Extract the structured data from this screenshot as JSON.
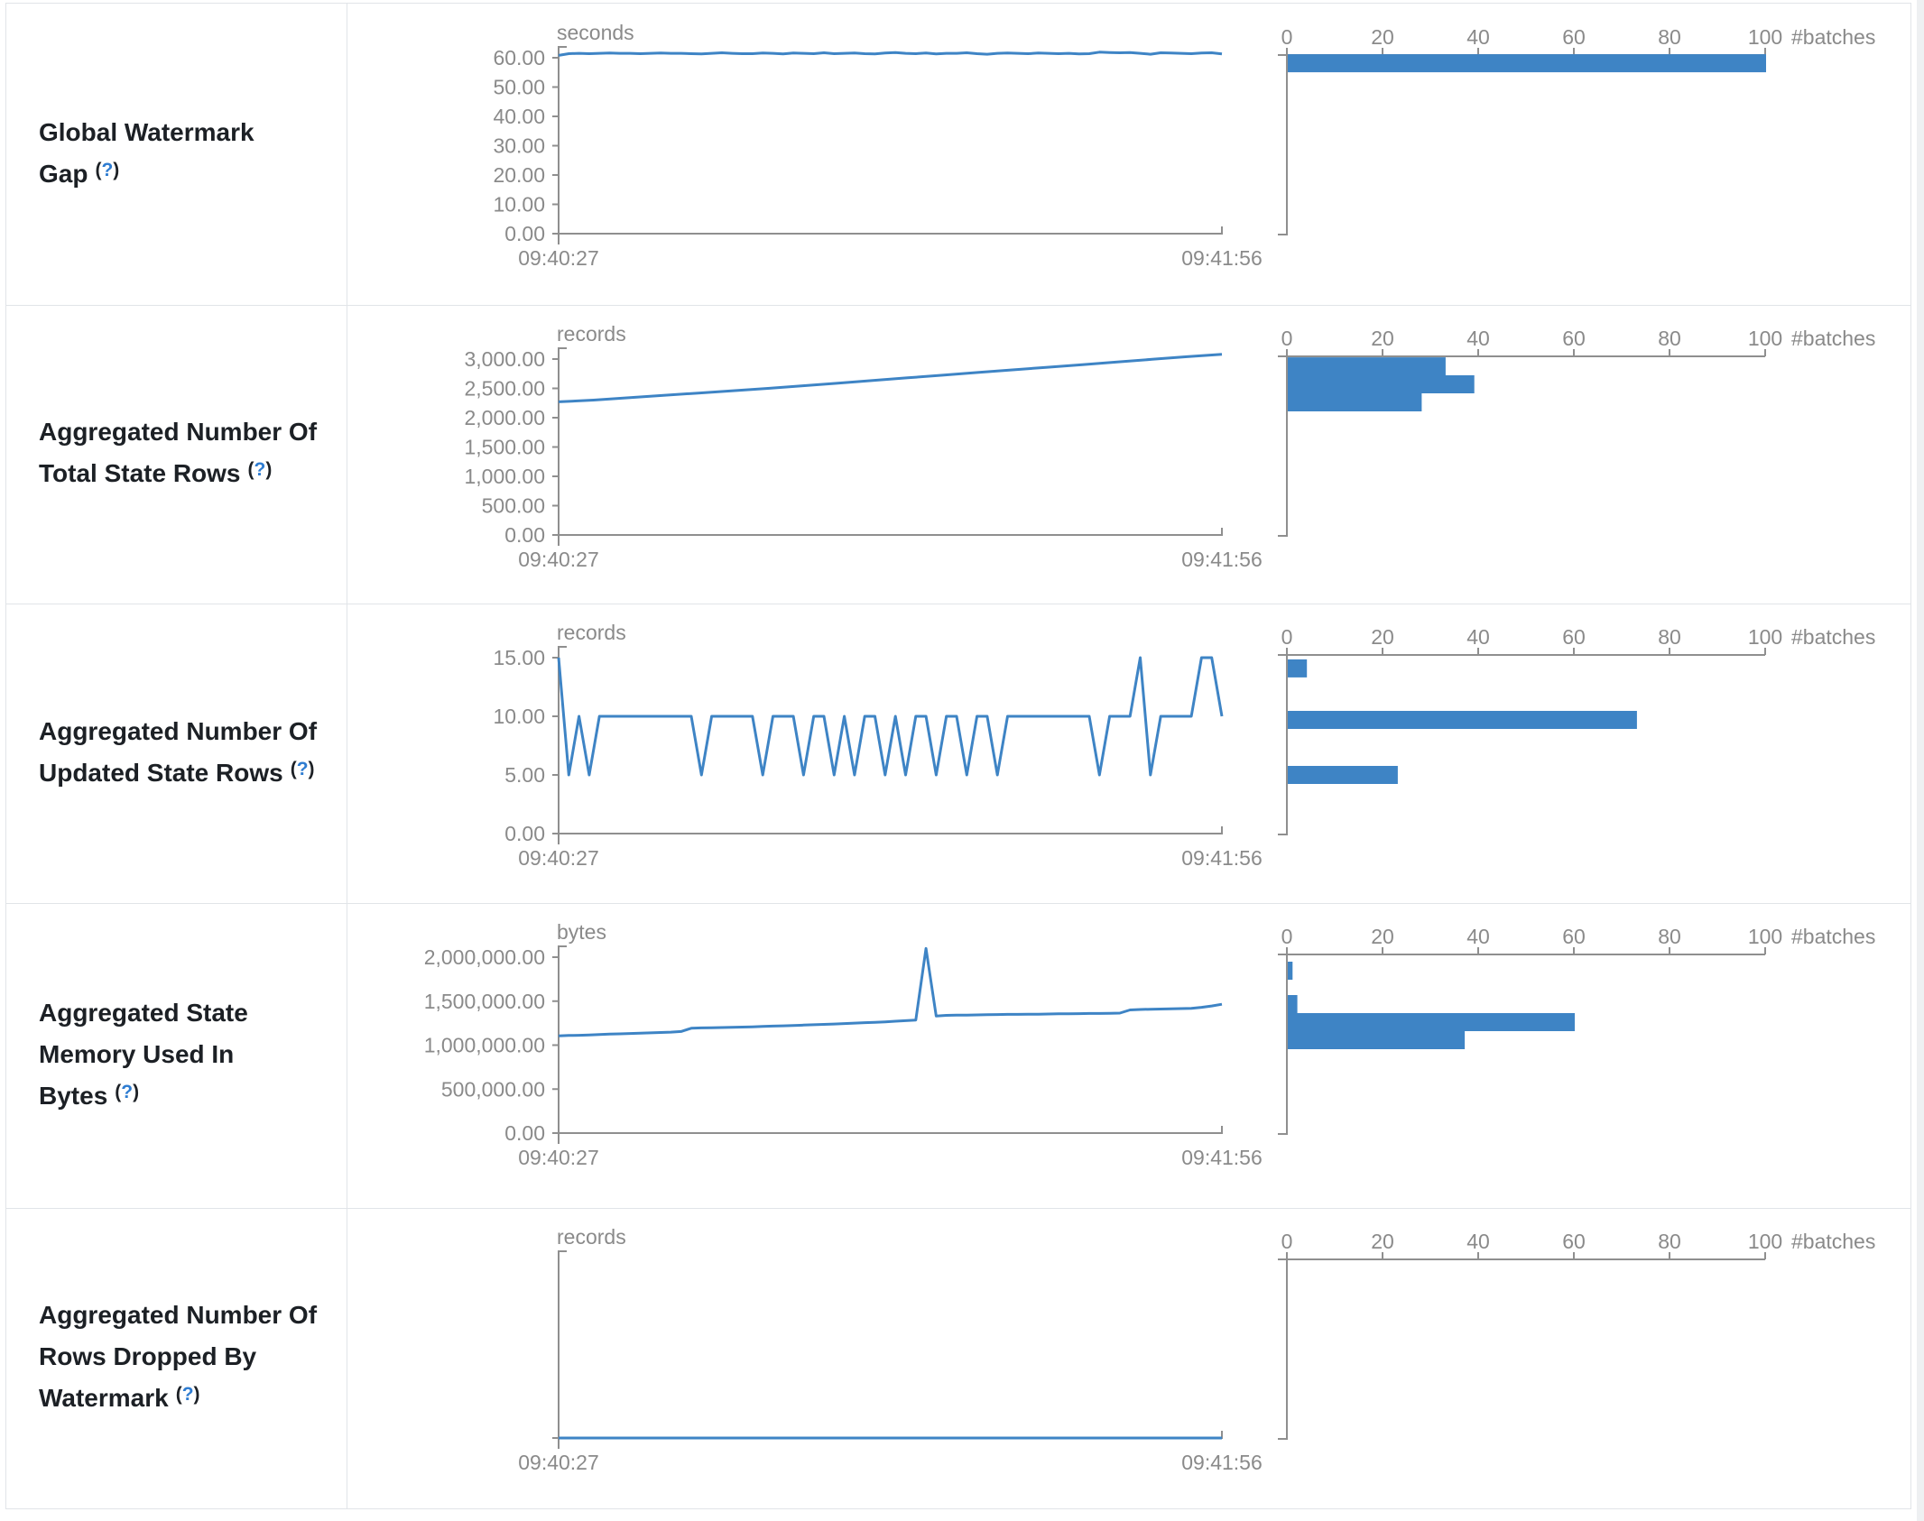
{
  "colors": {
    "accent": "#3e84c5",
    "axis_line": "#8f8f8f",
    "chart_text": "#8a8a8a",
    "label_text": "#1c2025",
    "help_blue": "#2e7cd1",
    "table_border": "#e1e4e8"
  },
  "time_axis": {
    "start": "09:40:27",
    "end": "09:41:56"
  },
  "batch_axis": {
    "ticks": [
      "0",
      "20",
      "40",
      "60",
      "80",
      "100"
    ],
    "tick_values": [
      0,
      20,
      40,
      60,
      80,
      100
    ],
    "label": "#batches"
  },
  "rows": [
    {
      "label": "Global Watermark Gap",
      "help": {
        "open": "(",
        "q": "?",
        "close": ")"
      },
      "unit": "seconds",
      "ymax": 60,
      "y_ticks": [
        {
          "v": 60,
          "label": "60.00"
        },
        {
          "v": 50,
          "label": "50.00"
        },
        {
          "v": 40,
          "label": "40.00"
        },
        {
          "v": 30,
          "label": "30.00"
        },
        {
          "v": 20,
          "label": "20.00"
        },
        {
          "v": 10,
          "label": "10.00"
        },
        {
          "v": 0,
          "label": "0.00"
        }
      ],
      "series": [
        60.8,
        61.4,
        61.5,
        61.4,
        61.5,
        61.6,
        61.5,
        61.5,
        61.4,
        61.5,
        61.6,
        61.5,
        61.5,
        61.4,
        61.3,
        61.5,
        61.7,
        61.5,
        61.4,
        61.4,
        61.6,
        61.5,
        61.3,
        61.6,
        61.5,
        61.4,
        61.7,
        61.4,
        61.5,
        61.6,
        61.4,
        61.3,
        61.6,
        61.8,
        61.5,
        61.4,
        61.6,
        61.3,
        61.5,
        61.5,
        61.7,
        61.4,
        61.2,
        61.5,
        61.6,
        61.5,
        61.4,
        61.6,
        61.5,
        61.4,
        61.5,
        61.3,
        61.4,
        61.9,
        61.8,
        61.7,
        61.8,
        61.5,
        61.2,
        61.7,
        61.6,
        61.5,
        61.4,
        61.6,
        61.7,
        61.3
      ],
      "hist_bars": [
        {
          "v": 61.2,
          "count": 100
        }
      ]
    },
    {
      "label": "Aggregated Number Of Total State Rows",
      "help": {
        "open": "(",
        "q": "?",
        "close": ")"
      },
      "unit": "records",
      "ymax": 3000,
      "y_ticks": [
        {
          "v": 3000,
          "label": "3,000.00"
        },
        {
          "v": 2500,
          "label": "2,500.00"
        },
        {
          "v": 2000,
          "label": "2,000.00"
        },
        {
          "v": 1500,
          "label": "1,500.00"
        },
        {
          "v": 1000,
          "label": "1,000.00"
        },
        {
          "v": 500,
          "label": "500.00"
        },
        {
          "v": 0,
          "label": "0.00"
        }
      ],
      "series": [
        2270,
        2300,
        2340,
        2380,
        2420,
        2460,
        2500,
        2545,
        2590,
        2635,
        2680,
        2725,
        2770,
        2815,
        2860,
        2905,
        2950,
        2995,
        3040,
        3080
      ],
      "hist_bars": [
        {
          "v": 3030,
          "count": 33
        },
        {
          "v": 2723,
          "count": 39
        },
        {
          "v": 2416,
          "count": 28
        }
      ]
    },
    {
      "label": "Aggregated Number Of Updated State Rows",
      "help": {
        "open": "(",
        "q": "?",
        "close": ")"
      },
      "unit": "records",
      "ymax": 15,
      "y_ticks": [
        {
          "v": 15,
          "label": "15.00"
        },
        {
          "v": 10,
          "label": "10.00"
        },
        {
          "v": 5,
          "label": "5.00"
        },
        {
          "v": 0,
          "label": "0.00"
        }
      ],
      "series": [
        15,
        5,
        10,
        5,
        10,
        10,
        10,
        10,
        10,
        10,
        10,
        10,
        10,
        10,
        5,
        10,
        10,
        10,
        10,
        10,
        5,
        10,
        10,
        10,
        5,
        10,
        10,
        5,
        10,
        5,
        10,
        10,
        5,
        10,
        5,
        10,
        10,
        5,
        10,
        10,
        5,
        10,
        10,
        5,
        10,
        10,
        10,
        10,
        10,
        10,
        10,
        10,
        10,
        5,
        10,
        10,
        10,
        15,
        5,
        10,
        10,
        10,
        10,
        15,
        15,
        10
      ],
      "hist_bars": [
        {
          "v": 14.85,
          "count": 4
        },
        {
          "v": 10.46,
          "count": 73
        },
        {
          "v": 5.77,
          "count": 23
        }
      ]
    },
    {
      "label": "Aggregated State Memory Used In Bytes",
      "help": {
        "open": "(",
        "q": "?",
        "close": ")"
      },
      "unit": "bytes",
      "ymax": 2000000,
      "y_ticks": [
        {
          "v": 2000000,
          "label": "2,000,000.00"
        },
        {
          "v": 1500000,
          "label": "1,500,000.00"
        },
        {
          "v": 1000000,
          "label": "1,000,000.00"
        },
        {
          "v": 500000,
          "label": "500,000.00"
        },
        {
          "v": 0,
          "label": "0.00"
        }
      ],
      "series": [
        1105000,
        1110000,
        1112000,
        1115000,
        1120000,
        1125000,
        1128000,
        1132000,
        1136000,
        1140000,
        1144000,
        1148000,
        1155000,
        1192000,
        1196000,
        1198000,
        1200000,
        1202000,
        1205000,
        1208000,
        1212000,
        1216000,
        1220000,
        1224000,
        1228000,
        1232000,
        1236000,
        1240000,
        1245000,
        1250000,
        1255000,
        1260000,
        1265000,
        1272000,
        1278000,
        1285000,
        2100000,
        1330000,
        1338000,
        1340000,
        1342000,
        1344000,
        1346000,
        1348000,
        1350000,
        1350000,
        1352000,
        1352000,
        1354000,
        1356000,
        1356000,
        1358000,
        1360000,
        1360000,
        1362000,
        1364000,
        1400000,
        1405000,
        1408000,
        1410000,
        1412000,
        1415000,
        1418000,
        1430000,
        1445000,
        1465000
      ],
      "hist_bars": [
        {
          "v": 1949000,
          "count": 1
        },
        {
          "v": 1569000,
          "count": 2
        },
        {
          "v": 1364000,
          "count": 60
        },
        {
          "v": 1159000,
          "count": 37
        }
      ]
    },
    {
      "label": "Aggregated Number Of Rows Dropped By Watermark",
      "help": {
        "open": "(",
        "q": "?",
        "close": ")"
      },
      "unit": "records",
      "ymax": 1,
      "y_ticks": [
        {
          "v": 0,
          "label": ""
        }
      ],
      "series": [
        0,
        0
      ],
      "hist_bars": []
    }
  ]
}
